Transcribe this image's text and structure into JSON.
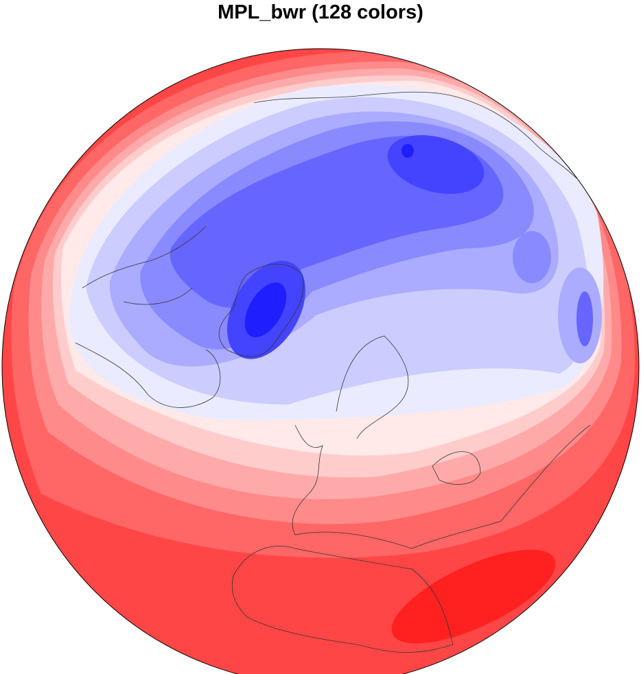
{
  "title": "MPL_bwr (128 colors)",
  "map": {
    "projection": "orthographic",
    "colormap": "MPL_bwr",
    "num_colors": 128,
    "fill": "filled contours",
    "coastlines": true,
    "colors": {
      "deep_blue": "#1e1eff",
      "blue": "#4444ff",
      "mid_blue": "#6666ff",
      "light_blue": "#8a8aff",
      "pale_blue": "#ababff",
      "lavender": "#ccccff",
      "near_white_blue": "#ebebff",
      "near_white_red": "#ffe9e9",
      "pale_red": "#ffcccc",
      "light_red": "#ffaaaa",
      "mid_red": "#ff8a8a",
      "red": "#ff6666",
      "strong_red": "#ff4646",
      "deep_red": "#ff2020"
    }
  }
}
